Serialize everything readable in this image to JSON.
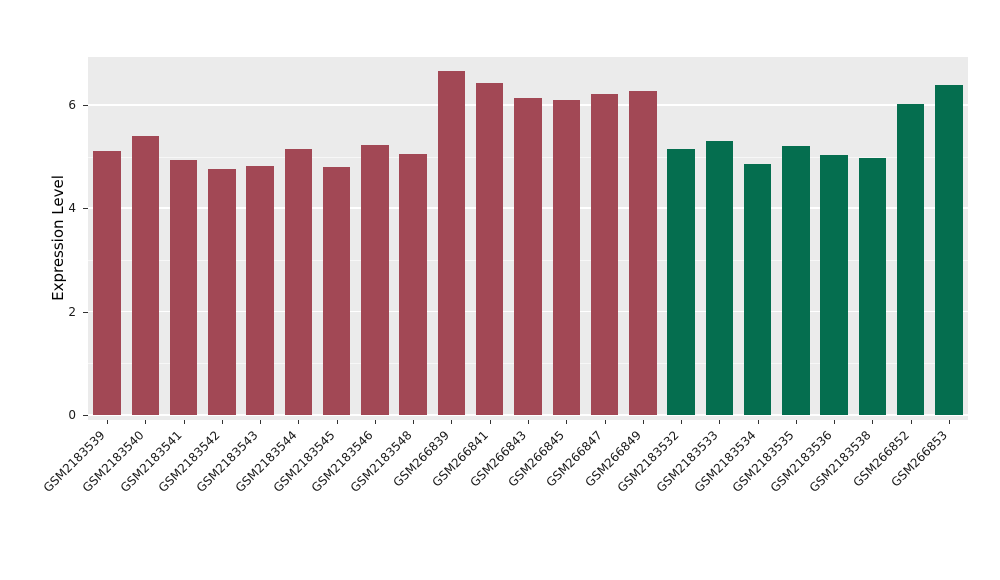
{
  "chart_data": {
    "type": "bar",
    "title": "",
    "xlabel": "",
    "ylabel": "Expression Level",
    "ylim": [
      0,
      6.93
    ],
    "yticks_major": [
      0,
      2,
      4,
      6
    ],
    "yticks_minor": [
      1,
      3,
      5
    ],
    "grid": "on",
    "legend": "none",
    "panel_background": "#EBEBEB",
    "gridline_color": "#FFFFFF",
    "group_colors": {
      "group1": "#A24855",
      "group2": "#056E4F"
    },
    "bars": [
      {
        "label": "GSM2183539",
        "value": 5.1,
        "group": "group1"
      },
      {
        "label": "GSM2183540",
        "value": 5.4,
        "group": "group1"
      },
      {
        "label": "GSM2183541",
        "value": 4.93,
        "group": "group1"
      },
      {
        "label": "GSM2183542",
        "value": 4.76,
        "group": "group1"
      },
      {
        "label": "GSM2183543",
        "value": 4.81,
        "group": "group1"
      },
      {
        "label": "GSM2183544",
        "value": 5.15,
        "group": "group1"
      },
      {
        "label": "GSM2183545",
        "value": 4.79,
        "group": "group1"
      },
      {
        "label": "GSM2183546",
        "value": 5.23,
        "group": "group1"
      },
      {
        "label": "GSM2183548",
        "value": 5.05,
        "group": "group1"
      },
      {
        "label": "GSM266839",
        "value": 6.65,
        "group": "group1"
      },
      {
        "label": "GSM266841",
        "value": 6.43,
        "group": "group1"
      },
      {
        "label": "GSM266843",
        "value": 6.13,
        "group": "group1"
      },
      {
        "label": "GSM266845",
        "value": 6.1,
        "group": "group1"
      },
      {
        "label": "GSM266847",
        "value": 6.21,
        "group": "group1"
      },
      {
        "label": "GSM266849",
        "value": 6.26,
        "group": "group1"
      },
      {
        "label": "GSM2183532",
        "value": 5.14,
        "group": "group2"
      },
      {
        "label": "GSM2183533",
        "value": 5.3,
        "group": "group2"
      },
      {
        "label": "GSM2183534",
        "value": 4.86,
        "group": "group2"
      },
      {
        "label": "GSM2183535",
        "value": 5.2,
        "group": "group2"
      },
      {
        "label": "GSM2183536",
        "value": 5.03,
        "group": "group2"
      },
      {
        "label": "GSM2183538",
        "value": 4.98,
        "group": "group2"
      },
      {
        "label": "GSM266852",
        "value": 6.01,
        "group": "group2"
      },
      {
        "label": "GSM266853",
        "value": 6.39,
        "group": "group2"
      }
    ]
  }
}
